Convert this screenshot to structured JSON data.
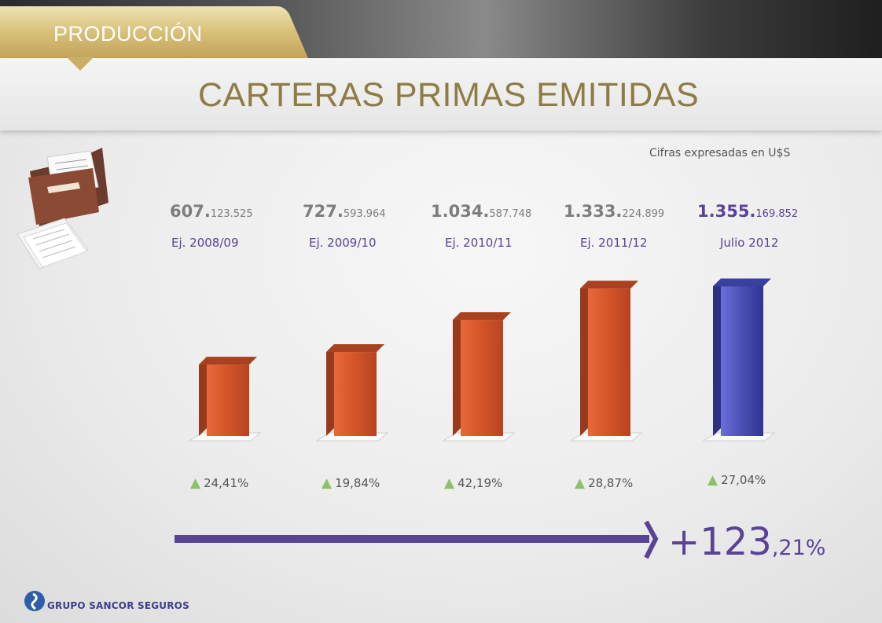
{
  "header": {
    "section": "PRODUCCIÓN",
    "title": "CARTERAS PRIMAS EMITIDAS"
  },
  "note": "Cifras expresadas en U$S",
  "brand": {
    "name": "GRUPO SANCOR SEGUROS"
  },
  "colors": {
    "bar": "#d4542a",
    "bar_highlight": "#4a4fb5",
    "title": "#8f7b45",
    "value_highlight": "#5a4396",
    "growth_arrow": "#8cc06a"
  },
  "chart_data": {
    "type": "bar",
    "categories": [
      "Ej. 2008/09",
      "Ej. 2009/10",
      "Ej. 2010/11",
      "Ej. 2011/12",
      "Julio 2012"
    ],
    "values": [
      607123525,
      727593964,
      1034587748,
      1333224899,
      1355169852
    ],
    "value_labels": [
      {
        "major": "607.",
        "minor": "123.525"
      },
      {
        "major": "727.",
        "minor": "593.964"
      },
      {
        "major": "1.034.",
        "minor": "587.748"
      },
      {
        "major": "1.333.",
        "minor": "224.899"
      },
      {
        "major": "1.355.",
        "minor": "169.852"
      }
    ],
    "growth": [
      "24,41%",
      "19,84%",
      "42,19%",
      "28,87%",
      "27,04%"
    ],
    "total_growth": {
      "major": "+123",
      "minor": ",21%"
    },
    "highlight_index": 4
  }
}
